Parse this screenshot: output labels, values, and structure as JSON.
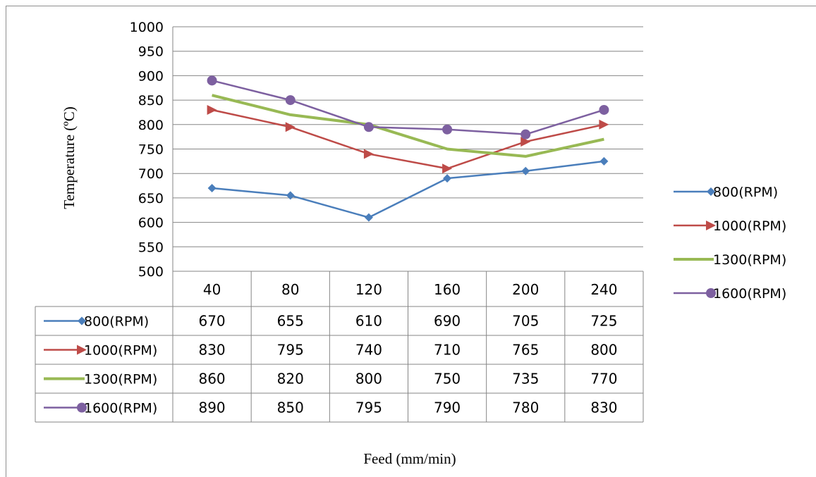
{
  "chart_data": {
    "type": "line",
    "title": "",
    "xlabel": "Feed (mm/min)",
    "ylabel": "Temperature (ºC)",
    "categories": [
      "40",
      "80",
      "120",
      "160",
      "200",
      "240"
    ],
    "ylim": [
      500,
      1000
    ],
    "yticks": [
      500,
      550,
      600,
      650,
      700,
      750,
      800,
      850,
      900,
      950,
      1000
    ],
    "grid": true,
    "legend_position": "right",
    "data_table": true,
    "series": [
      {
        "name": "800(RPM)",
        "values": [
          670,
          655,
          610,
          690,
          705,
          725
        ],
        "color": "#4a7ebb",
        "marker": "diamond"
      },
      {
        "name": "1000(RPM)",
        "values": [
          830,
          795,
          740,
          710,
          765,
          800
        ],
        "color": "#be4b48",
        "marker": "arrow"
      },
      {
        "name": "1300(RPM)",
        "values": [
          860,
          820,
          800,
          750,
          735,
          770
        ],
        "color": "#98b954",
        "marker": "none"
      },
      {
        "name": "1600(RPM)",
        "values": [
          890,
          850,
          795,
          790,
          780,
          830
        ],
        "color": "#7d60a0",
        "marker": "circle"
      }
    ]
  }
}
